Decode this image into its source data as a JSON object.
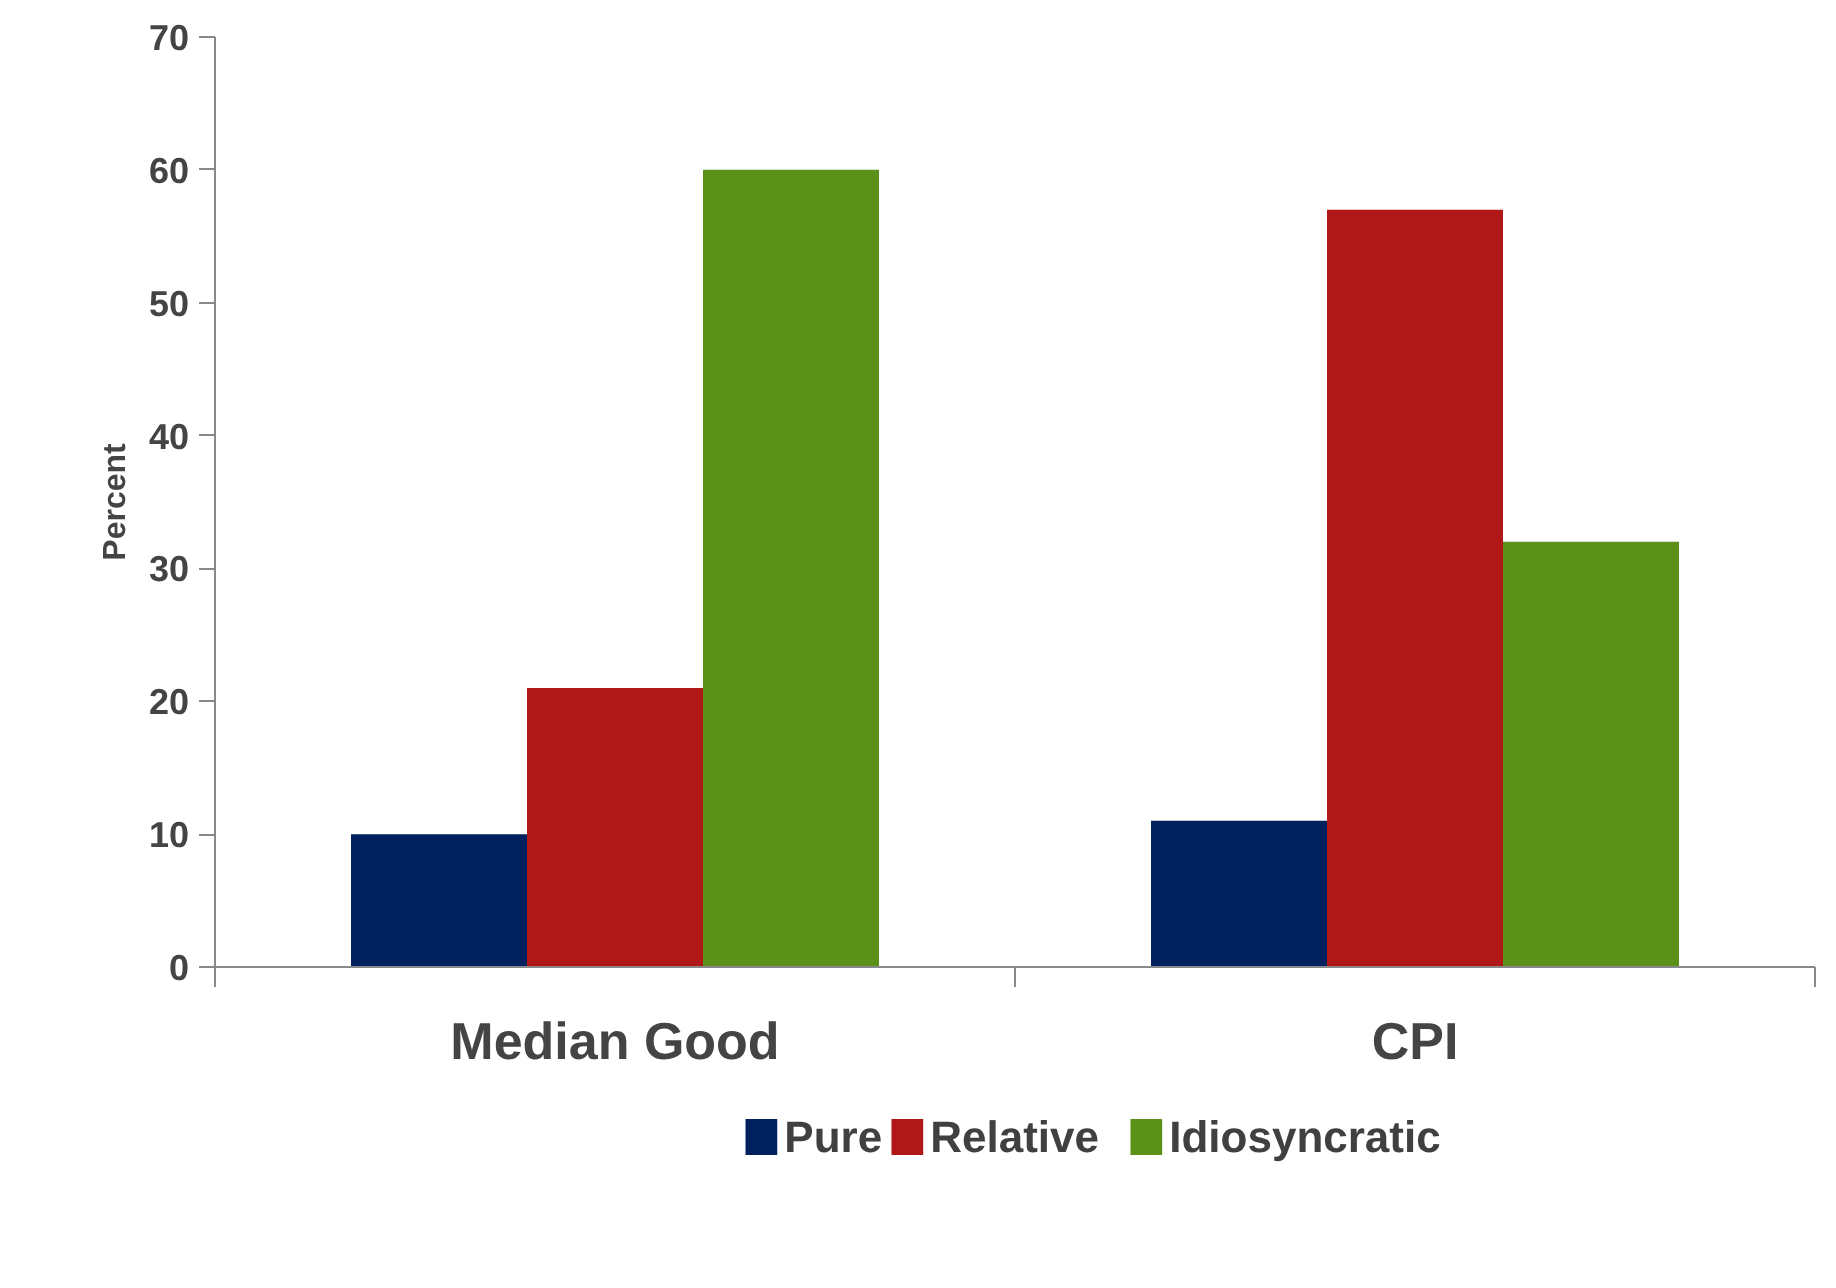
{
  "chart_data": {
    "type": "bar",
    "ylabel": "Percent",
    "categories": [
      "Median Good",
      "CPI"
    ],
    "series": [
      {
        "name": "Pure",
        "color": "#00215e",
        "values": [
          10,
          11
        ]
      },
      {
        "name": "Relative",
        "color": "#b01717",
        "values": [
          21,
          57
        ]
      },
      {
        "name": "Idiosyncratic",
        "color": "#5b9119",
        "values": [
          60,
          32
        ]
      }
    ],
    "ylim": [
      0,
      70
    ],
    "yticks": [
      0,
      10,
      20,
      30,
      40,
      50,
      60,
      70
    ],
    "grid": false,
    "legend": "bottom"
  }
}
